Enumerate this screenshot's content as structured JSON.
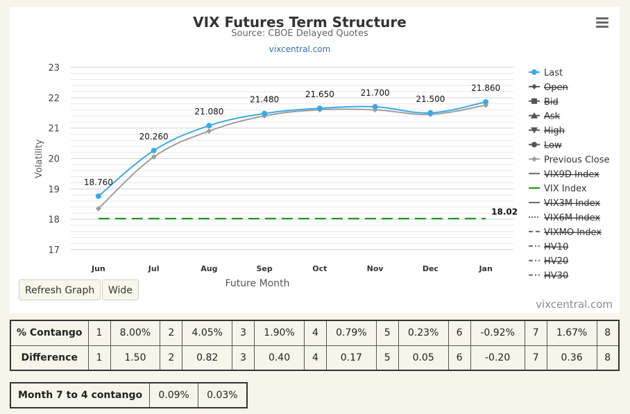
{
  "chart": {
    "title": "VIX Futures Term Structure",
    "subtitle": "Source: CBOE Delayed Quotes",
    "link": "vixcentral.com",
    "brand": "vixcentral.com",
    "refresh_button": "Refresh Graph",
    "wide_button": "Wide"
  },
  "chart_data": {
    "type": "line",
    "categories": [
      "Jun",
      "Jul",
      "Aug",
      "Sep",
      "Oct",
      "Nov",
      "Dec",
      "Jan"
    ],
    "xlabel": "Future Month",
    "ylabel": "Volatility",
    "ylim": [
      17,
      23
    ],
    "yticks": [
      "17",
      "18",
      "19",
      "20",
      "21",
      "22",
      "23"
    ],
    "grid": true,
    "legend_position": "right",
    "series": [
      {
        "name": "Last",
        "values": [
          18.76,
          20.26,
          21.08,
          21.48,
          21.65,
          21.7,
          21.5,
          21.86
        ],
        "labels": [
          "18.760",
          "20.260",
          "21.080",
          "21.480",
          "21.650",
          "21.700",
          "21.500",
          "21.860"
        ],
        "color": "#3ba9e8"
      },
      {
        "name": "Previous Close",
        "values": [
          18.35,
          20.05,
          20.9,
          21.4,
          21.6,
          21.6,
          21.45,
          21.75
        ],
        "color": "#9e9e9e"
      },
      {
        "name": "VIX Index",
        "value": 18.02,
        "label": "18.02",
        "color": "#0a8a0a"
      }
    ],
    "legend": [
      {
        "name": "Last",
        "strike": false,
        "marker": "circle",
        "color": "#3ba9e8"
      },
      {
        "name": "Open",
        "strike": true,
        "marker": "diamond",
        "color": "#555555"
      },
      {
        "name": "Bid",
        "strike": true,
        "marker": "square",
        "color": "#555555"
      },
      {
        "name": "Ask",
        "strike": true,
        "marker": "triangle-up",
        "color": "#555555"
      },
      {
        "name": "High",
        "strike": true,
        "marker": "triangle-down",
        "color": "#555555"
      },
      {
        "name": "Low",
        "strike": true,
        "marker": "circle",
        "color": "#555555"
      },
      {
        "name": "Previous Close",
        "strike": false,
        "marker": "diamond",
        "color": "#9e9e9e"
      },
      {
        "name": "VIX9D Index",
        "strike": true,
        "marker": "solid",
        "color": "#666666"
      },
      {
        "name": "VIX Index",
        "strike": false,
        "marker": "solid",
        "color": "#0a8a0a"
      },
      {
        "name": "VIX3M Index",
        "strike": true,
        "marker": "solid",
        "color": "#666666"
      },
      {
        "name": "VIX6M Index",
        "strike": true,
        "marker": "dotted",
        "color": "#666666"
      },
      {
        "name": "VIXMO Index",
        "strike": true,
        "marker": "dashed",
        "color": "#666666"
      },
      {
        "name": "HV10",
        "strike": true,
        "marker": "dashdot",
        "color": "#666666"
      },
      {
        "name": "HV20",
        "strike": true,
        "marker": "dashdot",
        "color": "#666666"
      },
      {
        "name": "HV30",
        "strike": true,
        "marker": "dashdot",
        "color": "#666666"
      }
    ]
  },
  "contango_table": {
    "rows": [
      {
        "label": "% Contango",
        "cells": [
          [
            "1",
            "8.00%"
          ],
          [
            "2",
            "4.05%"
          ],
          [
            "3",
            "1.90%"
          ],
          [
            "4",
            "0.79%"
          ],
          [
            "5",
            "0.23%"
          ],
          [
            "6",
            "-0.92%"
          ],
          [
            "7",
            "1.67%"
          ],
          [
            "8",
            ""
          ]
        ]
      },
      {
        "label": "Difference",
        "cells": [
          [
            "1",
            "1.50"
          ],
          [
            "2",
            "0.82"
          ],
          [
            "3",
            "0.40"
          ],
          [
            "4",
            "0.17"
          ],
          [
            "5",
            "0.05"
          ],
          [
            "6",
            "-0.20"
          ],
          [
            "7",
            "0.36"
          ],
          [
            "8",
            ""
          ]
        ]
      }
    ]
  },
  "month_table": {
    "label": "Month 7 to 4 contango",
    "values": [
      "0.09%",
      "0.03%"
    ]
  }
}
